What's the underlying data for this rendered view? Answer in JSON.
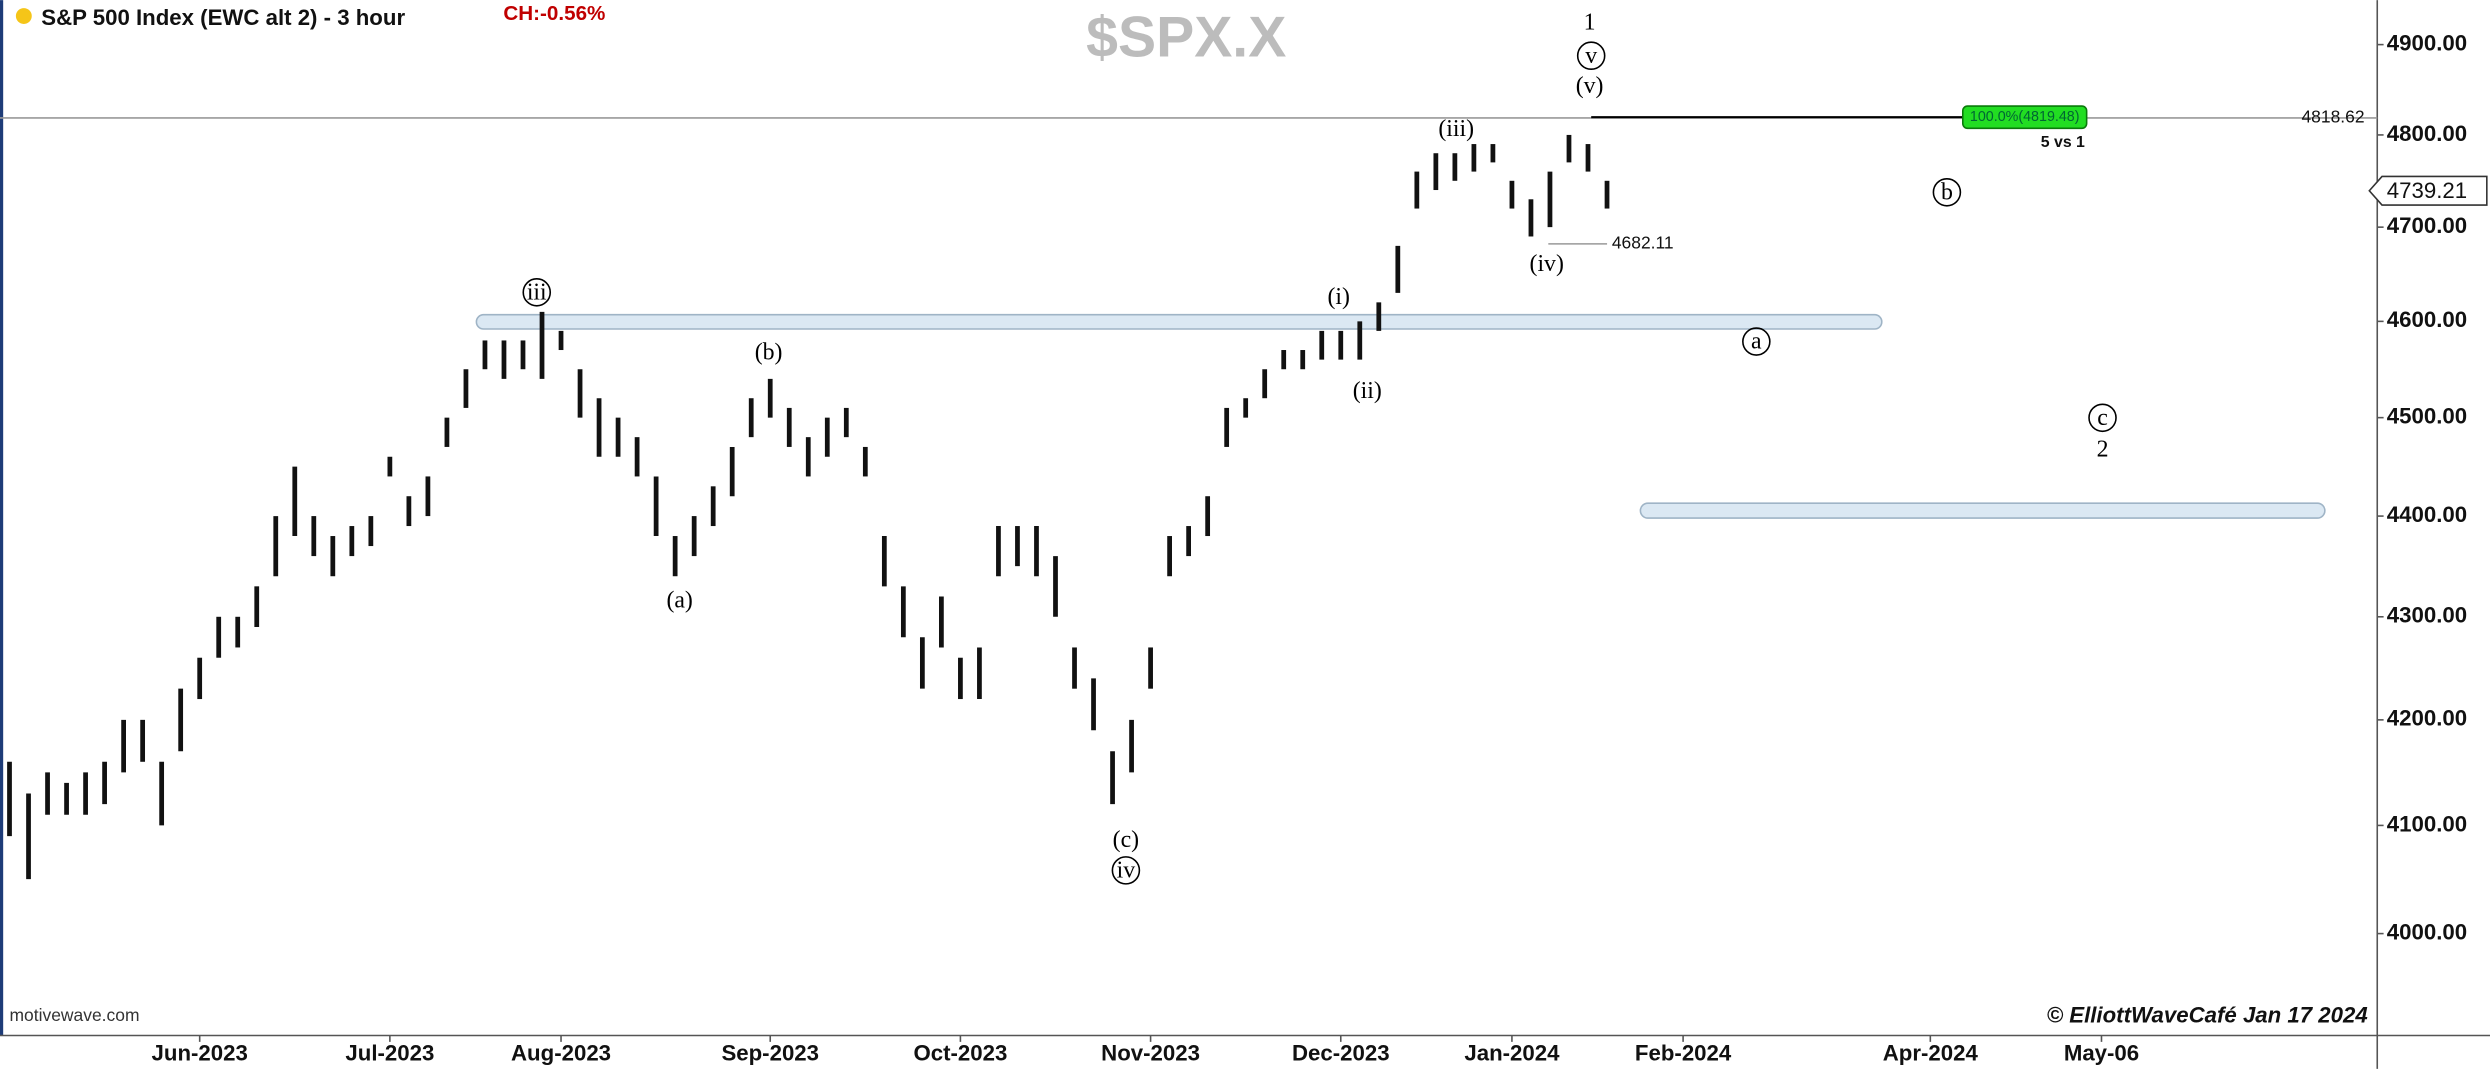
{
  "chart_data": {
    "type": "hilo",
    "title": "S&P 500 Index (EWC alt 2) - 3 hour",
    "change": "CH:-0.56%",
    "symbol": "$SPX.X",
    "watermark": "motivewave.com",
    "copyright": "© ElliottWaveCafé Jan 17 2024",
    "log_scale": true,
    "color": "#111111",
    "categories": [
      null,
      null,
      null,
      null,
      null,
      null,
      null,
      null,
      null,
      null,
      "Jun-2023",
      null,
      null,
      null,
      null,
      null,
      null,
      null,
      null,
      null,
      "Jul-2023",
      null,
      null,
      null,
      null,
      null,
      null,
      null,
      null,
      "Aug-2023",
      null,
      null,
      null,
      null,
      null,
      null,
      null,
      null,
      null,
      null,
      "Sep-2023",
      null,
      null,
      null,
      null,
      null,
      null,
      null,
      null,
      null,
      "Oct-2023",
      null,
      null,
      null,
      null,
      null,
      null,
      null,
      null,
      null,
      "Nov-2023",
      null,
      null,
      null,
      null,
      null,
      null,
      null,
      null,
      null,
      "Dec-2023",
      null,
      null,
      null,
      null,
      null,
      null,
      null,
      null,
      "Jan-2024",
      null,
      null,
      null,
      null,
      null,
      null,
      null,
      null,
      "Feb-2024",
      null,
      null,
      null,
      null,
      null,
      null,
      null,
      null,
      null,
      null,
      null,
      null,
      "Apr-2024",
      null,
      null,
      null,
      null,
      null,
      null,
      null,
      null,
      "May-06",
      null,
      null,
      null,
      null,
      null,
      null,
      null,
      null,
      null,
      null,
      null,
      null,
      null,
      null
    ],
    "high": [
      4160,
      4130,
      4150,
      4140,
      4150,
      4160,
      4200,
      4200,
      4160,
      4230,
      4260,
      4300,
      4300,
      4330,
      4400,
      4450,
      4400,
      4380,
      4390,
      4400,
      4460,
      4420,
      4440,
      4500,
      4550,
      4580,
      4580,
      4580,
      4610,
      4590,
      4550,
      4520,
      4500,
      4480,
      4440,
      4380,
      4400,
      4430,
      4470,
      4520,
      4540,
      4510,
      4480,
      4500,
      4510,
      4470,
      4380,
      4330,
      4280,
      4320,
      4260,
      4270,
      4390,
      4390,
      4390,
      4360,
      4270,
      4240,
      4170,
      4200,
      4270,
      4380,
      4390,
      4420,
      4510,
      4520,
      4550,
      4570,
      4570,
      4590,
      4590,
      4600,
      4620,
      4680,
      4760,
      4780,
      4780,
      4790,
      4790,
      4750,
      4730,
      4760,
      4800,
      4790,
      4750,
      null,
      null,
      null,
      null,
      null,
      null,
      null,
      null,
      null,
      null,
      null,
      null,
      null,
      null,
      null,
      null,
      null,
      null,
      null,
      null,
      null,
      null,
      null,
      null,
      null,
      null,
      null,
      null,
      null,
      null,
      null,
      null,
      null,
      null,
      null,
      null,
      null,
      null,
      null,
      null
    ],
    "low": [
      4090,
      4050,
      4110,
      4110,
      4110,
      4120,
      4150,
      4160,
      4100,
      4170,
      4220,
      4260,
      4270,
      4290,
      4340,
      4380,
      4360,
      4340,
      4360,
      4370,
      4440,
      4390,
      4400,
      4470,
      4510,
      4550,
      4540,
      4550,
      4540,
      4570,
      4500,
      4460,
      4460,
      4440,
      4380,
      4340,
      4360,
      4390,
      4420,
      4480,
      4500,
      4470,
      4440,
      4460,
      4480,
      4440,
      4330,
      4280,
      4230,
      4270,
      4220,
      4220,
      4340,
      4350,
      4340,
      4300,
      4230,
      4190,
      4120,
      4150,
      4230,
      4340,
      4360,
      4380,
      4470,
      4500,
      4520,
      4550,
      4550,
      4560,
      4560,
      4560,
      4590,
      4630,
      4720,
      4740,
      4750,
      4760,
      4770,
      4720,
      4690,
      4700,
      4770,
      4760,
      4720,
      null,
      null,
      null,
      null,
      null,
      null,
      null,
      null,
      null,
      null,
      null,
      null,
      null,
      null,
      null,
      null,
      null,
      null,
      null,
      null,
      null,
      null,
      null,
      null,
      null,
      null,
      null,
      null,
      null,
      null,
      null,
      null,
      null,
      null,
      null,
      null,
      null,
      null,
      null,
      null
    ],
    "ylim": [
      3908,
      4950
    ],
    "yticks": [
      {
        "value": 4000,
        "label": "4000.00"
      },
      {
        "value": 4100,
        "label": "4100.00"
      },
      {
        "value": 4200,
        "label": "4200.00"
      },
      {
        "value": 4300,
        "label": "4300.00"
      },
      {
        "value": 4400,
        "label": "4400.00"
      },
      {
        "value": 4500,
        "label": "4500.00"
      },
      {
        "value": 4600,
        "label": "4600.00"
      },
      {
        "value": 4700,
        "label": "4700.00"
      },
      {
        "value": 4800,
        "label": "4800.00"
      },
      {
        "value": 4900,
        "label": "4900.00"
      }
    ],
    "resistance": 4818.62,
    "target": {
      "value": 4819.48,
      "label": "100.0%(4819.48)",
      "note": "5 vs 1"
    },
    "low_marker": 4682.11,
    "last_price": 4739.21,
    "zones": [
      {
        "low": 4592,
        "high": 4607
      },
      {
        "low": 4398,
        "high": 4413
      }
    ],
    "annotations": [
      "1",
      "v",
      "(v)",
      "(iii)",
      "(iv)",
      "iii",
      "(b)",
      "(a)",
      "(i)",
      "(ii)",
      "(c)",
      "iv",
      "a",
      "b",
      "c",
      "2"
    ]
  }
}
